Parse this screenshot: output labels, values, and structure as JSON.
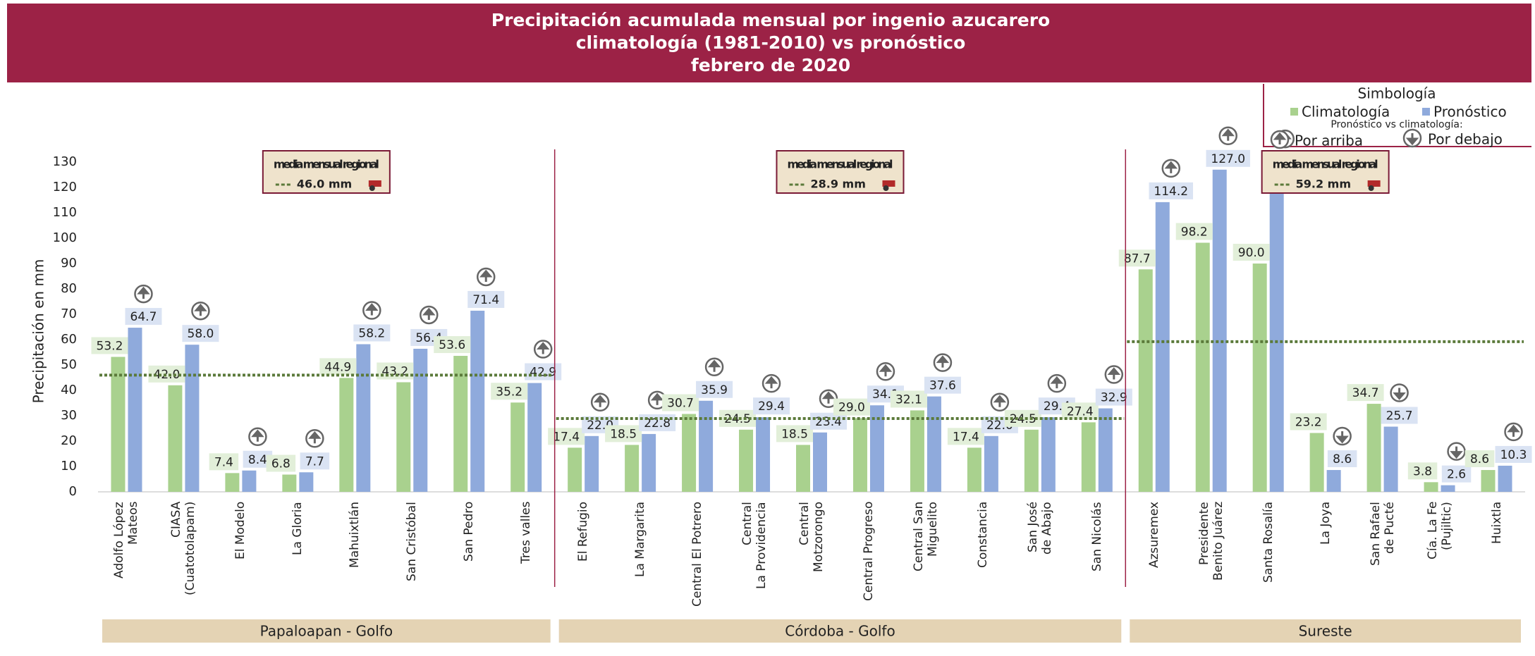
{
  "chart_data": {
    "type": "bar",
    "title": [
      "Precipitación acumulada mensual por ingenio azucarero",
      "climatología (1981-2010) vs pronóstico",
      "febrero de 2020"
    ],
    "ylabel": "Precipitación en mm",
    "categories": [
      "Adolfo López\nMateos",
      "CIASA\n(Cuatotolapam)",
      "El Modelo",
      "La Gloria",
      "Mahuixtlán",
      "San Cristóbal",
      "San Pedro",
      "Tres valles",
      "El Refugio",
      "La Margarita",
      "Central El Potrero",
      "Central\nLa Providencia",
      "Central Motzorongo",
      "Central Progreso",
      "Central San\nMiguelito",
      "Constancia",
      "San José\nde Abajo",
      "San Nicolás",
      "Azsuremex",
      "Presidente\nBenito Juárez",
      "Santa Rosalía",
      "La Joya",
      "San Rafael\nde Pucté",
      "Cía. La Fe\n(Pujiltic)",
      "Huixtla"
    ],
    "series": [
      {
        "name": "Climatología",
        "color": "#a9d18e",
        "label_bg": "#e2efd9",
        "values": [
          53.2,
          42.0,
          7.4,
          6.8,
          44.9,
          43.2,
          53.6,
          35.2,
          17.4,
          18.5,
          30.7,
          24.5,
          18.5,
          29.0,
          32.1,
          17.4,
          24.5,
          27.4,
          87.7,
          98.2,
          90.0,
          23.2,
          34.7,
          3.8,
          8.6
        ],
        "value_labels": [
          "53.2",
          "42.0",
          "7.4",
          "6.8",
          "44.9",
          "43.2",
          "53.6",
          "35.2",
          "17.4",
          "18.5",
          "30.7",
          "24.5",
          "18.5",
          "29.0",
          "32.1",
          "17.4",
          "24.5",
          "27.4",
          "87.7",
          "98.2",
          "90.0",
          "23.2",
          "34.7",
          "3.8",
          "8.6"
        ]
      },
      {
        "name": "Pronóstico",
        "color": "#8faadc",
        "label_bg": "#dae3f3",
        "values": [
          64.7,
          58.0,
          8.4,
          7.7,
          58.2,
          56.4,
          71.4,
          42.9,
          22.0,
          22.8,
          35.9,
          29.4,
          23.4,
          34.1,
          37.6,
          22.0,
          29.4,
          32.9,
          114.2,
          127.0,
          125.8,
          8.6,
          25.7,
          2.6,
          10.3
        ],
        "value_labels": [
          "64.7",
          "58.0",
          "8.4",
          "7.7",
          "58.2",
          "56.4",
          "71.4",
          "42.9",
          "22.0",
          "22.8",
          "35.9",
          "29.4",
          "23.4",
          "34.1",
          "37.6",
          "22.0",
          "29.4",
          "32.9",
          "114.2",
          "127.0",
          "125.8",
          "8.6",
          "25.7",
          "2.6",
          "10.3"
        ]
      }
    ],
    "regions": [
      {
        "name": "Papaloapan - Golfo",
        "size": 8,
        "mean_title": "media mensual regional",
        "mean": 46.0,
        "mean_label": "46.0 mm"
      },
      {
        "name": "Córdoba - Golfo",
        "size": 10,
        "mean_title": "media mensual regional",
        "mean": 28.9,
        "mean_label": "28.9 mm"
      },
      {
        "name": "Sureste",
        "size": 7,
        "mean_title": "media mensual regional",
        "mean": 59.2,
        "mean_label": "59.2 mm"
      }
    ],
    "mean_color": "#5b7a3a",
    "legend": {
      "title": "Simbología",
      "subtitle": "Pronóstico vs climatología:",
      "up": "Por arriba",
      "down": "Por debajo"
    },
    "ylim": [
      0,
      130
    ],
    "yticks": [
      0,
      10,
      20,
      30,
      40,
      50,
      60,
      70,
      80,
      90,
      100,
      110,
      120,
      130
    ],
    "grid": false
  }
}
